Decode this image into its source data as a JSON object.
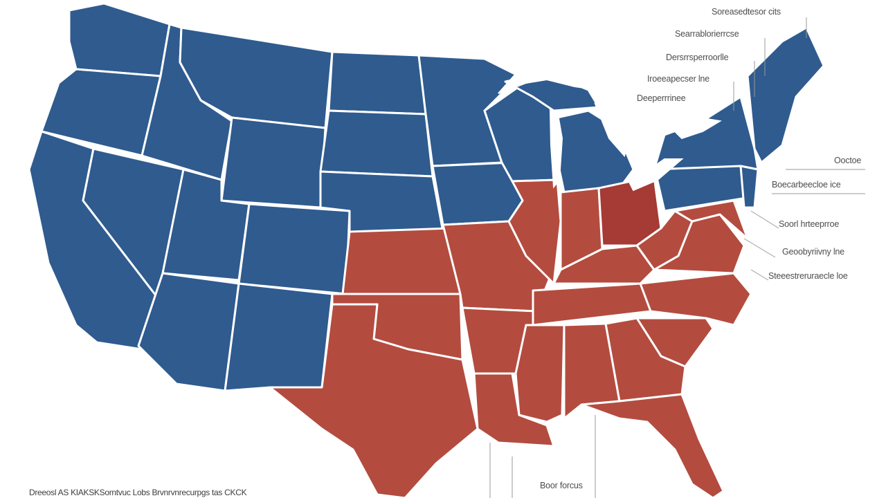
{
  "legend": {
    "colors": {
      "blue": "#2f5b8f",
      "red": "#b34c3f",
      "dark_red": "#a63a35"
    },
    "labels": [
      {
        "text": "Soreasedtesor cits"
      },
      {
        "text": "Searrablorierrcse"
      },
      {
        "text": "Dersrrsperroorlle"
      },
      {
        "text": "Iroeeapecser lne"
      },
      {
        "text": "Deeperrrinee"
      },
      {
        "text": "Ooctoe"
      },
      {
        "text": "Boecarbeecloe ice"
      },
      {
        "text": "Soorl hrteeprroe"
      },
      {
        "text": "Geoobyriivny lne"
      },
      {
        "text": "Steeestreruraecle loe"
      }
    ],
    "bottom_label": "Boor forcus"
  },
  "footer": "Dreeosl AS KIAKSKSorntvuc Lobs Brvnrvnrecurpgs tas CKCK"
}
